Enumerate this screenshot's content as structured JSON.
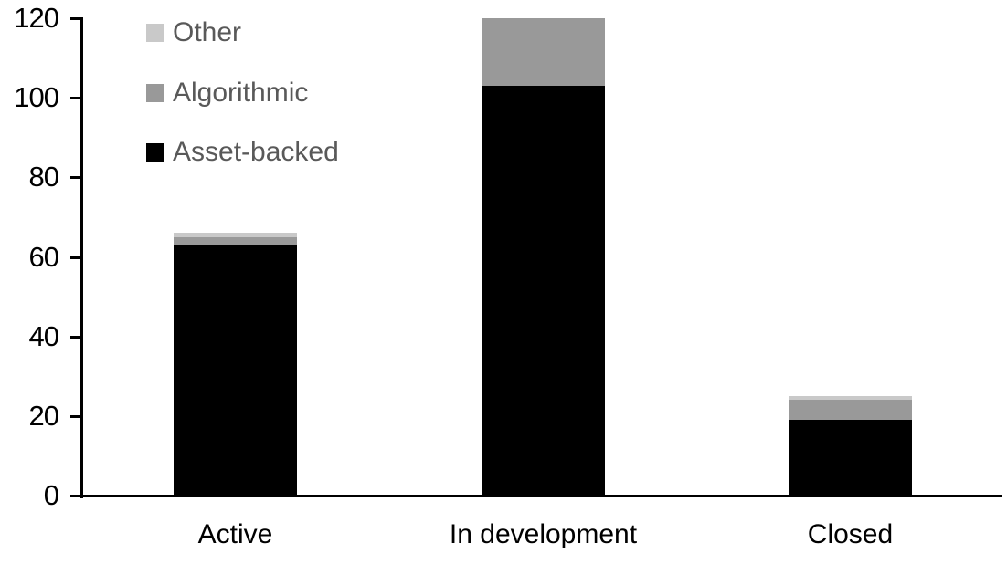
{
  "chart_data": {
    "type": "bar",
    "stacked": true,
    "title": "",
    "xlabel": "",
    "ylabel": "",
    "categories": [
      "Active",
      "In development",
      "Closed"
    ],
    "series": [
      {
        "name": "Asset-backed",
        "color": "#000000",
        "values": [
          63,
          103,
          19
        ]
      },
      {
        "name": "Algorithmic",
        "color": "#999999",
        "values": [
          2,
          17,
          5
        ]
      },
      {
        "name": "Other",
        "color": "#C9C9C9",
        "values": [
          1,
          0,
          1
        ]
      }
    ],
    "stack_order_bottom_to_top": [
      "Asset-backed",
      "Algorithmic",
      "Other"
    ],
    "totals": [
      66,
      120,
      25
    ],
    "ylim": [
      0,
      120
    ],
    "yticks": [
      0,
      20,
      40,
      60,
      80,
      100,
      120
    ],
    "grid": false,
    "axis_color": "#000000",
    "legend": {
      "position": "top-left",
      "order": [
        "Other",
        "Algorithmic",
        "Asset-backed"
      ],
      "text_color": "#595959"
    }
  }
}
